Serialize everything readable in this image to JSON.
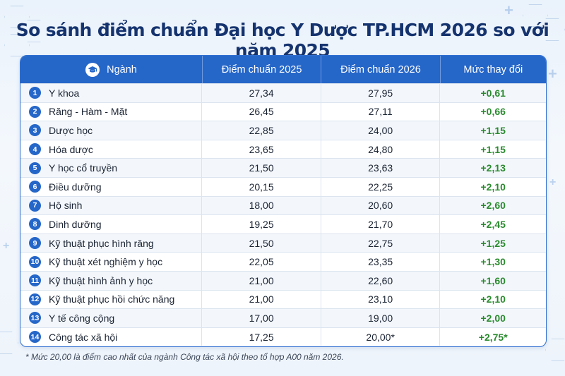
{
  "title": "So sánh điểm chuẩn Đại học Y Dược TP.HCM 2026 so với năm 2025",
  "table": {
    "headers": {
      "major": "Ngành",
      "score2025": "Điểm chuẩn 2025",
      "score2026": "Điểm chuẩn 2026",
      "change": "Mức thay đổi"
    },
    "rows": [
      {
        "no": "1",
        "major": "Y khoa",
        "s2025": "27,34",
        "s2026": "27,95",
        "change": "+0,61"
      },
      {
        "no": "2",
        "major": "Răng - Hàm - Mặt",
        "s2025": "26,45",
        "s2026": "27,11",
        "change": "+0,66"
      },
      {
        "no": "3",
        "major": "Dược học",
        "s2025": "22,85",
        "s2026": "24,00",
        "change": "+1,15"
      },
      {
        "no": "4",
        "major": "Hóa dược",
        "s2025": "23,65",
        "s2026": "24,80",
        "change": "+1,15"
      },
      {
        "no": "5",
        "major": "Y học cổ truyền",
        "s2025": "21,50",
        "s2026": "23,63",
        "change": "+2,13"
      },
      {
        "no": "6",
        "major": "Điều dưỡng",
        "s2025": "20,15",
        "s2026": "22,25",
        "change": "+2,10"
      },
      {
        "no": "7",
        "major": "Hộ sinh",
        "s2025": "18,00",
        "s2026": "20,60",
        "change": "+2,60"
      },
      {
        "no": "8",
        "major": "Dinh dưỡng",
        "s2025": "19,25",
        "s2026": "21,70",
        "change": "+2,45"
      },
      {
        "no": "9",
        "major": "Kỹ thuật phục hình răng",
        "s2025": "21,50",
        "s2026": "22,75",
        "change": "+1,25"
      },
      {
        "no": "10",
        "major": "Kỹ thuật xét nghiệm y học",
        "s2025": "22,05",
        "s2026": "23,35",
        "change": "+1,30"
      },
      {
        "no": "11",
        "major": "Kỹ thuật hình ảnh y học",
        "s2025": "21,00",
        "s2026": "22,60",
        "change": "+1,60"
      },
      {
        "no": "12",
        "major": "Kỹ thuật phục hồi chức năng",
        "s2025": "21,00",
        "s2026": "23,10",
        "change": "+2,10"
      },
      {
        "no": "13",
        "major": "Y tế công cộng",
        "s2025": "17,00",
        "s2026": "19,00",
        "change": "+2,00"
      },
      {
        "no": "14",
        "major": "Công tác xã hội",
        "s2025": "17,25",
        "s2026": "20,00*",
        "change": "+2,75*"
      }
    ]
  },
  "footnote": "* Mức 20,00 là điểm cao nhất của ngành Công tác xã hội theo tổ hợp A00 năm 2026.",
  "colors": {
    "header_bg": "#2566c9",
    "title": "#15336e",
    "change": "#2a8a2e"
  },
  "icons": {
    "header": "graduation-cap-icon"
  }
}
